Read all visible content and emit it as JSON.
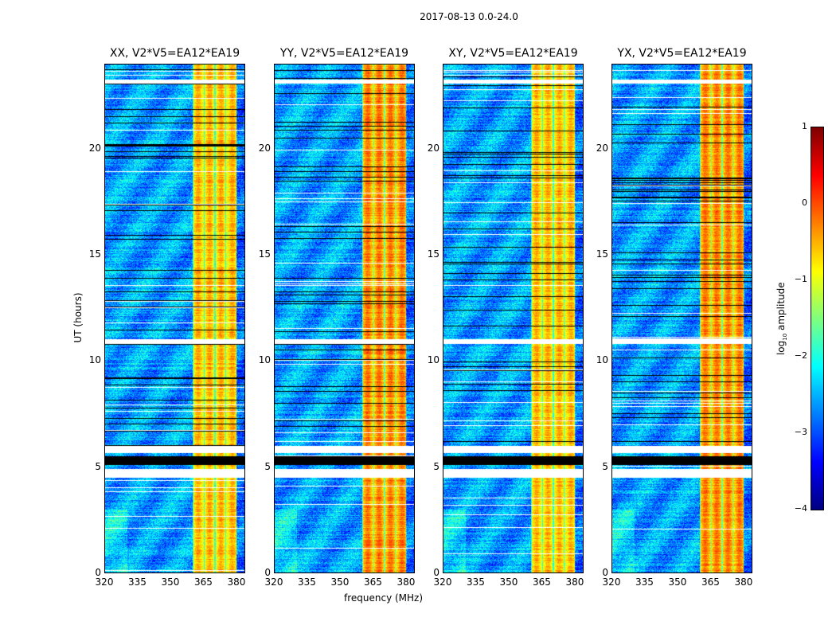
{
  "chart_data": {
    "type": "heatmap",
    "title": "2017-08-13 0.0-24.0",
    "panels": [
      {
        "title": "XX, V2*V5=EA12*EA19"
      },
      {
        "title": "YY, V2*V5=EA12*EA19"
      },
      {
        "title": "XY, V2*V5=EA12*EA19"
      },
      {
        "title": "YX, V2*V5=EA12*EA19"
      }
    ],
    "xlabel": "frequency (MHz)",
    "ylabel": "UT (hours)",
    "xlim": [
      320,
      384
    ],
    "ylim": [
      0,
      24
    ],
    "xticks": [
      "320",
      "335",
      "350",
      "365",
      "380"
    ],
    "yticks": [
      "0",
      "5",
      "10",
      "15",
      "20"
    ],
    "colorbar": {
      "label": "log10 amplitude",
      "label_main": "log",
      "label_sub": "10",
      "label_rest": " amplitude",
      "range": [
        -4,
        1
      ],
      "ticks": [
        "1",
        "0",
        "−1",
        "−2",
        "−3",
        "−4"
      ],
      "colormap": "jet"
    },
    "features": {
      "bright_band_mhz": [
        360,
        380
      ],
      "background_log_amplitude": -2.7,
      "band_log_amplitude": -0.5,
      "flagged_hours_black": [
        [
          5.1,
          5.5
        ]
      ],
      "flagged_hours_white": [
        [
          4.5,
          4.9
        ],
        [
          5.65,
          6.0
        ],
        [
          10.8,
          11.05
        ],
        [
          23.1,
          23.3
        ]
      ]
    }
  }
}
